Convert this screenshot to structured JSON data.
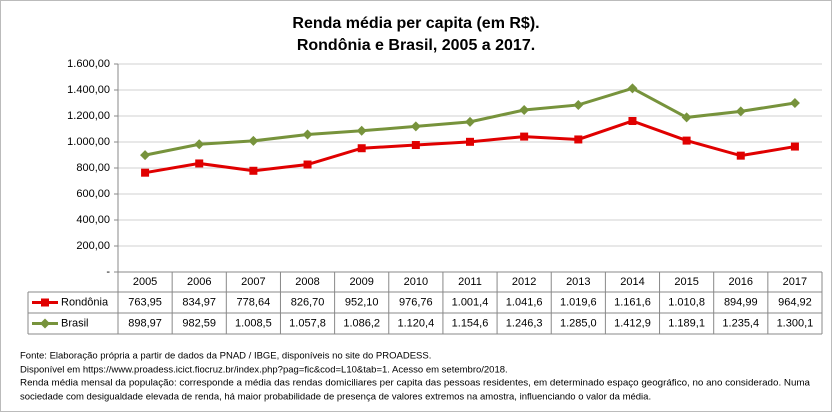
{
  "chart_data": {
    "type": "line",
    "title": "Renda média per capita (em R$).",
    "subtitle": "Rondônia e Brasil, 2005 a 2017.",
    "categories": [
      "2005",
      "2006",
      "2007",
      "2008",
      "2009",
      "2010",
      "2011",
      "2012",
      "2013",
      "2014",
      "2015",
      "2016",
      "2017"
    ],
    "series": [
      {
        "name": "Rondônia",
        "color": "#e00000",
        "marker": "square",
        "values": [
          763.95,
          834.97,
          778.64,
          826.7,
          952.1,
          976.76,
          1001.4,
          1041.6,
          1019.6,
          1161.6,
          1010.8,
          894.99,
          964.92
        ],
        "value_labels": [
          "763,95",
          "834,97",
          "778,64",
          "826,70",
          "952,10",
          "976,76",
          "1.001,4",
          "1.041,6",
          "1.019,6",
          "1.161,6",
          "1.010,8",
          "894,99",
          "964,92"
        ]
      },
      {
        "name": "Brasil",
        "color": "#77933c",
        "marker": "diamond",
        "values": [
          898.97,
          982.59,
          1008.5,
          1057.8,
          1086.2,
          1120.4,
          1154.6,
          1246.3,
          1285.0,
          1412.9,
          1189.1,
          1235.4,
          1300.1
        ],
        "value_labels": [
          "898,97",
          "982,59",
          "1.008,5",
          "1.057,8",
          "1.086,2",
          "1.120,4",
          "1.154,6",
          "1.246,3",
          "1.285,0",
          "1.412,9",
          "1.189,1",
          "1.235,4",
          "1.300,1"
        ]
      }
    ],
    "ylim": [
      0,
      1600
    ],
    "yticks": [
      {
        "value": 0,
        "label": "-"
      },
      {
        "value": 200,
        "label": "200,00"
      },
      {
        "value": 400,
        "label": "400,00"
      },
      {
        "value": 600,
        "label": "600,00"
      },
      {
        "value": 800,
        "label": "800,00"
      },
      {
        "value": 1000,
        "label": "1.000,00"
      },
      {
        "value": 1200,
        "label": "1.200,00"
      },
      {
        "value": 1400,
        "label": "1.400,00"
      },
      {
        "value": 1600,
        "label": "1.600,00"
      }
    ],
    "grid": true,
    "notes": [
      "Fonte: Elaboração própria a partir de dados da PNAD / IBGE, disponíveis no site do PROADESS.",
      "Disponível em https://www.proadess.icict.fiocruz.br/index.php?pag=fic&cod=L10&tab=1. Acesso em setembro/2018.",
      "Renda média mensal da população: corresponde a média das rendas domiciliares per capita das pessoas residentes, em determinado espaço geográfico, no ano considerado. Numa",
      "sociedade com desigualdade elevada de renda, há maior probabilidade de presença de valores extremos na amostra, influenciando o valor da média."
    ]
  }
}
